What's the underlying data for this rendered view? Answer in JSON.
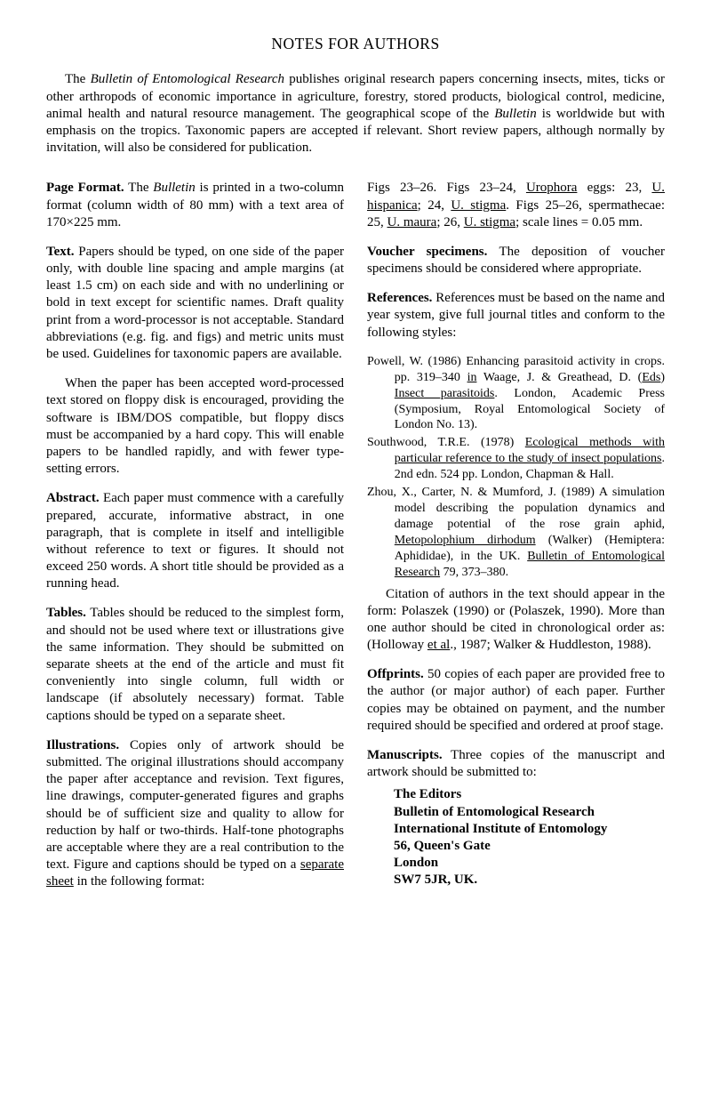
{
  "title": "NOTES FOR AUTHORS",
  "intro": {
    "p1a": "The ",
    "p1b": "Bulletin of Entomological Research",
    "p1c": " publishes original research papers concerning insects, mites, ticks or other arthropods of economic importance in agriculture, forestry, stored products, biological control, medicine, animal health and natural resource management. The geographical scope of the ",
    "p1d": "Bulletin",
    "p1e": " is worldwide but with emphasis on the tropics. Taxonomic papers are accepted if relevant. Short review papers, although normally by invitation, will also be considered for publication."
  },
  "pageFormat": {
    "head": "Page Format.",
    "t1": " The ",
    "t2": "Bulletin",
    "t3": " is printed in a two-column format (column width of 80 mm) with a text area of 170×225 mm."
  },
  "text": {
    "head": "Text.",
    "p1": " Papers should be typed, on one side of the paper only, with double line spacing and ample margins (at least 1.5 cm) on each side and with no underlining or bold in text except for scientific names. Draft quality print from a word-processor is not acceptable. Standard abbreviations (e.g. fig. and figs) and metric units must be used. Guidelines for taxonomic papers are available.",
    "p2": "When the paper has been accepted word-processed text stored on floppy disk is encouraged, providing the software is IBM/DOS compatible, but floppy discs must be accompanied by a hard copy. This will enable papers to be handled rapidly, and with fewer type-setting errors."
  },
  "abstract": {
    "head": "Abstract.",
    "body": " Each paper must commence with a carefully prepared, accurate, informative abstract, in one paragraph, that is complete in itself and intelligible without reference to text or figures. It should not exceed 250 words. A short title should be provided as a running head."
  },
  "tables": {
    "head": "Tables.",
    "body": " Tables should be reduced to the simplest form, and should not be used where text or illustrations give the same information. They should be submitted on separate sheets at the end of the article and must fit conveniently into single column, full width or landscape (if absolutely necessary) format. Table captions should be typed on a separate sheet."
  },
  "illustrations": {
    "head": "Illustrations.",
    "t1": " Copies only of artwork should be submitted. The original illustrations should accompany the paper after acceptance and revision. Text figures, line drawings, computer-generated figures and graphs should be of sufficient size and quality to allow for reduction by half or two-thirds. Half-tone photographs are acceptable where they are a real contribution to the text. Figure and captions should be typed on a ",
    "t2": "separate sheet",
    "t3": " in the following format:"
  },
  "figexample": {
    "a": "Figs 23–26. Figs 23–24, ",
    "b": "Urophora",
    "c": " eggs: 23, ",
    "d": "U. hispanica",
    "e": "; 24, ",
    "f": "U. stigma",
    "g": ". Figs 25–26, spermathecae: 25, ",
    "h": "U. maura",
    "i": "; 26, ",
    "j": "U. stigma",
    "k": "; scale lines = 0.05 mm."
  },
  "voucher": {
    "head": "Voucher specimens.",
    "body": " The deposition of voucher specimens should be considered where appropriate."
  },
  "references": {
    "head": "References.",
    "intro": " References must be based on the name and year system, give full journal titles and conform to the following styles:",
    "r1": {
      "a": "Powell, W. (1986) Enhancing parasitoid activity in crops. pp. 319–340 ",
      "b": "in",
      "c": " Waage, J. & Greathead, D. (",
      "d": "Eds",
      "e": ") ",
      "f": "Insect parasitoids",
      "g": ". London, Academic Press (Symposium, Royal Entomological Society of London No. 13)."
    },
    "r2": {
      "a": "Southwood, T.R.E. (1978) ",
      "b": "Ecological methods with particular reference to the study of insect populations",
      "c": ". 2nd edn. 524 pp. London, Chapman & Hall."
    },
    "r3": {
      "a": "Zhou, X., Carter, N. & Mumford, J. (1989) A simulation model describing the population dynamics and damage potential of the rose grain aphid, ",
      "b": "Metopolophium dirhodum",
      "c": " (Walker) (Hemiptera: Aphididae), in the UK. ",
      "d": "Bulletin of Entomological Research",
      "e": " 79, 373–380."
    },
    "citation": {
      "a": "Citation of authors in the text should appear in the form: Polaszek (1990) or (Polaszek, 1990). More than one author should be cited in chronological order as: (Holloway ",
      "b": "et al",
      "c": "., 1987; Walker & Huddleston, 1988)."
    }
  },
  "offprints": {
    "head": "Offprints.",
    "body": " 50 copies of each paper are provided free to the author (or major author) of each paper. Further copies may be obtained on payment, and the number required should be specified and ordered at proof stage."
  },
  "manuscripts": {
    "head": "Manuscripts.",
    "body": " Three copies of the manuscript and artwork should be submitted to:",
    "addr1": "The Editors",
    "addr2": "Bulletin of Entomological Research",
    "addr3": "International Institute of Entomology",
    "addr4": "56, Queen's Gate",
    "addr5": "London",
    "addr6": "SW7 5JR, UK."
  }
}
